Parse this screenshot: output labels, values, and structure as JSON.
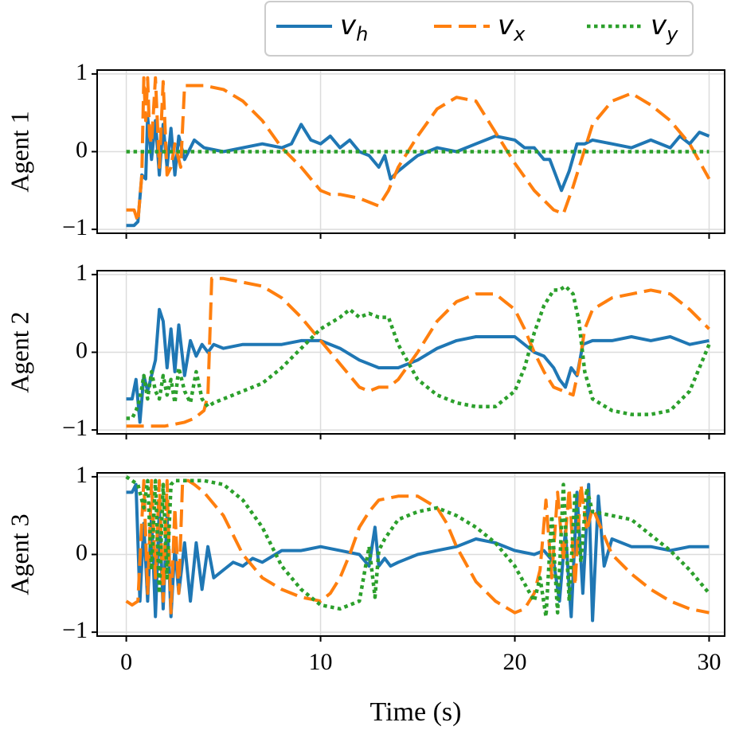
{
  "chart_data": {
    "type": "line",
    "xlabel": "Time (s)",
    "xlim": [
      -1.5,
      30.8
    ],
    "xticks": [
      0,
      10,
      20,
      30
    ],
    "ylim": [
      -1.05,
      1.05
    ],
    "yticks": [
      -1,
      0,
      1
    ],
    "ytick_labels": [
      "−1",
      "0",
      "1"
    ],
    "grid": true,
    "legend": {
      "placement": "top-right",
      "entries": [
        {
          "label": "v",
          "sub": "h",
          "color": "#1f77b4",
          "style": "solid"
        },
        {
          "label": "v",
          "sub": "x",
          "color": "#ff7f0e",
          "style": "dashed"
        },
        {
          "label": "v",
          "sub": "y",
          "color": "#2ca02c",
          "style": "dotted"
        }
      ]
    },
    "panels": [
      {
        "ylabel": "Agent 1",
        "series": [
          {
            "key": "v_h",
            "color": "#1f77b4",
            "style": "solid",
            "x": [
              0,
              0.4,
              0.6,
              0.8,
              1.0,
              1.1,
              1.3,
              1.5,
              1.7,
              1.9,
              2.1,
              2.3,
              2.5,
              2.7,
              3.0,
              3.5,
              4,
              5,
              6,
              7,
              8,
              8.5,
              9,
              9.5,
              10,
              10.5,
              11,
              11.5,
              12,
              12.5,
              13,
              13.3,
              13.6,
              14,
              14.5,
              15,
              16,
              17,
              18,
              19,
              20,
              20.5,
              21,
              21.5,
              21.8,
              22.1,
              22.4,
              22.8,
              23.2,
              23.6,
              24,
              25,
              26,
              27,
              28,
              28.5,
              29,
              29.5,
              30
            ],
            "y": [
              -0.95,
              -0.95,
              -0.9,
              -0.3,
              -0.35,
              0.45,
              -0.1,
              0.4,
              -0.3,
              0.35,
              -0.2,
              0.3,
              -0.3,
              0.2,
              -0.1,
              0.15,
              0.05,
              0.0,
              0.05,
              0.1,
              0.05,
              0.1,
              0.35,
              0.15,
              0.1,
              0.2,
              0.05,
              0.15,
              0.0,
              -0.05,
              -0.2,
              -0.05,
              -0.35,
              -0.25,
              -0.15,
              -0.05,
              0.05,
              0.0,
              0.1,
              0.2,
              0.15,
              0.05,
              0.05,
              -0.1,
              -0.1,
              -0.3,
              -0.5,
              -0.25,
              0.1,
              0.1,
              0.15,
              0.1,
              0.05,
              0.15,
              0.05,
              0.2,
              0.1,
              0.25,
              0.2
            ]
          },
          {
            "key": "v_x",
            "color": "#ff7f0e",
            "style": "dashed",
            "x": [
              0,
              0.4,
              0.6,
              0.8,
              0.9,
              1.0,
              1.1,
              1.2,
              1.3,
              1.5,
              1.7,
              1.9,
              2.1,
              2.3,
              2.5,
              2.8,
              3.0,
              3.5,
              4,
              5,
              6,
              7,
              8,
              9,
              9.5,
              10,
              10.5,
              11,
              12,
              13,
              13.5,
              14,
              15,
              16,
              17,
              18,
              19,
              20,
              21,
              22,
              22.5,
              23,
              24,
              25,
              26,
              27,
              28,
              29,
              30
            ],
            "y": [
              -0.75,
              -0.75,
              -0.9,
              -0.3,
              0.95,
              0.4,
              0.95,
              0.2,
              0.1,
              0.95,
              -0.2,
              0.9,
              -0.3,
              -0.2,
              0.1,
              -0.2,
              0.85,
              0.85,
              0.85,
              0.8,
              0.65,
              0.4,
              0.05,
              -0.2,
              -0.35,
              -0.5,
              -0.55,
              -0.55,
              -0.6,
              -0.7,
              -0.5,
              -0.2,
              0.2,
              0.55,
              0.7,
              0.65,
              0.25,
              -0.15,
              -0.5,
              -0.75,
              -0.8,
              -0.45,
              0.35,
              0.65,
              0.75,
              0.6,
              0.4,
              0.1,
              -0.35
            ]
          },
          {
            "key": "v_y",
            "color": "#2ca02c",
            "style": "dotted",
            "x": [
              0,
              30
            ],
            "y": [
              0,
              0
            ]
          }
        ]
      },
      {
        "ylabel": "Agent 2",
        "series": [
          {
            "key": "v_h",
            "color": "#1f77b4",
            "style": "solid",
            "x": [
              0,
              0.3,
              0.5,
              0.7,
              0.9,
              1.1,
              1.3,
              1.5,
              1.7,
              1.9,
              2.1,
              2.3,
              2.5,
              2.7,
              3.0,
              3.3,
              3.6,
              3.9,
              4.2,
              4.5,
              5,
              6,
              7,
              8,
              9,
              10,
              11,
              12,
              13,
              14,
              15,
              16,
              17,
              18,
              19,
              20,
              21,
              21.5,
              22,
              22.3,
              22.6,
              22.9,
              23.2,
              23.5,
              24,
              25,
              26,
              27,
              28,
              29,
              30
            ],
            "y": [
              -0.6,
              -0.6,
              -0.35,
              -0.9,
              -0.3,
              -0.5,
              -0.3,
              -0.1,
              0.55,
              0.4,
              -0.2,
              0.3,
              -0.25,
              0.35,
              -0.3,
              0.15,
              -0.05,
              0.1,
              0.0,
              0.1,
              0.05,
              0.1,
              0.1,
              0.1,
              0.15,
              0.15,
              0.05,
              -0.1,
              -0.2,
              -0.2,
              -0.1,
              0.05,
              0.15,
              0.2,
              0.2,
              0.2,
              0.0,
              -0.05,
              -0.2,
              -0.35,
              -0.45,
              -0.2,
              -0.3,
              0.1,
              0.15,
              0.15,
              0.2,
              0.15,
              0.2,
              0.1,
              0.15
            ]
          },
          {
            "key": "v_x",
            "color": "#ff7f0e",
            "style": "dashed",
            "x": [
              0,
              1,
              2,
              3,
              3.5,
              4,
              4.2,
              4.4,
              5,
              6,
              7,
              8,
              9,
              10,
              10.5,
              11,
              11.5,
              12,
              12.5,
              13,
              13.5,
              14,
              15,
              16,
              17,
              18,
              19,
              20,
              20.5,
              21,
              21.5,
              22,
              22.5,
              23,
              23.3,
              23.6,
              24,
              25,
              26,
              27,
              28,
              29,
              30
            ],
            "y": [
              -0.95,
              -0.95,
              -0.95,
              -0.9,
              -0.85,
              -0.75,
              -0.55,
              0.95,
              0.95,
              0.9,
              0.85,
              0.7,
              0.45,
              0.15,
              0.0,
              -0.15,
              -0.3,
              -0.45,
              -0.5,
              -0.45,
              -0.45,
              -0.35,
              0.0,
              0.4,
              0.65,
              0.75,
              0.75,
              0.55,
              0.3,
              0.0,
              -0.25,
              -0.45,
              -0.5,
              -0.55,
              -0.2,
              0.3,
              0.55,
              0.7,
              0.75,
              0.8,
              0.75,
              0.55,
              0.3
            ]
          },
          {
            "key": "v_y",
            "color": "#2ca02c",
            "style": "dotted",
            "x": [
              0,
              0.3,
              0.5,
              0.7,
              0.9,
              1.1,
              1.3,
              1.5,
              1.7,
              1.9,
              2.1,
              2.3,
              2.5,
              2.7,
              3.0,
              3.3,
              3.6,
              3.9,
              4.2,
              4.5,
              5,
              6,
              7,
              8,
              9,
              10,
              11,
              11.5,
              12,
              12.5,
              13,
              13.5,
              14,
              15,
              16,
              17,
              18,
              19,
              20,
              20.5,
              21,
              21.5,
              22,
              22.3,
              22.6,
              23,
              23.3,
              23.6,
              24,
              25,
              26,
              27,
              28,
              29,
              30
            ],
            "y": [
              -0.85,
              -0.85,
              -0.75,
              -0.6,
              -0.3,
              -0.6,
              -0.25,
              -0.5,
              -0.6,
              -0.3,
              -0.55,
              -0.35,
              -0.65,
              -0.2,
              -0.5,
              -0.65,
              -0.25,
              -0.6,
              -0.7,
              -0.65,
              -0.6,
              -0.5,
              -0.4,
              -0.2,
              0.05,
              0.3,
              0.45,
              0.55,
              0.45,
              0.5,
              0.45,
              0.45,
              0.1,
              -0.35,
              -0.55,
              -0.65,
              -0.7,
              -0.7,
              -0.5,
              -0.2,
              0.25,
              0.6,
              0.8,
              0.8,
              0.85,
              0.75,
              0.4,
              -0.25,
              -0.6,
              -0.75,
              -0.8,
              -0.8,
              -0.75,
              -0.5,
              0.1
            ]
          }
        ]
      },
      {
        "ylabel": "Agent 3",
        "series": [
          {
            "key": "v_h",
            "color": "#1f77b4",
            "style": "solid",
            "x": [
              0,
              0.3,
              0.5,
              0.7,
              0.9,
              1.1,
              1.3,
              1.5,
              1.7,
              1.9,
              2.1,
              2.3,
              2.5,
              2.7,
              3.0,
              3.3,
              3.6,
              3.9,
              4.2,
              4.5,
              5,
              5.5,
              6,
              6.5,
              7,
              8,
              9,
              10,
              11,
              12,
              12.5,
              12.8,
              13,
              13.3,
              13.6,
              14,
              15,
              16,
              17,
              18,
              19,
              20,
              21,
              21.5,
              22,
              22.3,
              22.6,
              22.9,
              23.2,
              23.5,
              23.8,
              24,
              24.3,
              24.6,
              25,
              26,
              27,
              28,
              29,
              30
            ],
            "y": [
              0.8,
              0.8,
              0.9,
              -0.6,
              0.4,
              -0.6,
              0.5,
              -0.8,
              0.6,
              -0.7,
              0.5,
              -0.8,
              0.1,
              -0.5,
              0.15,
              -0.6,
              0.15,
              -0.45,
              0.1,
              -0.3,
              -0.2,
              -0.1,
              -0.15,
              -0.05,
              -0.1,
              0.05,
              0.05,
              0.1,
              0.05,
              0.0,
              -0.15,
              0.35,
              -0.15,
              -0.05,
              -0.15,
              -0.1,
              0.0,
              0.05,
              0.1,
              0.2,
              0.15,
              0.05,
              0.0,
              0.05,
              -0.1,
              -0.6,
              0.3,
              -0.8,
              0.8,
              -0.5,
              0.9,
              -0.85,
              0.75,
              -0.15,
              0.2,
              0.1,
              0.1,
              0.05,
              0.1,
              0.1
            ]
          },
          {
            "key": "v_x",
            "color": "#ff7f0e",
            "style": "dashed",
            "x": [
              0,
              0.3,
              0.6,
              0.9,
              1.1,
              1.3,
              1.5,
              1.7,
              1.9,
              2.1,
              2.3,
              2.5,
              2.7,
              2.9,
              3.2,
              3.5,
              4,
              5,
              6,
              7,
              8,
              9,
              10,
              10.5,
              11,
              11.5,
              12,
              12.5,
              13,
              14,
              15,
              16,
              16.5,
              17,
              18,
              19,
              20,
              20.5,
              21,
              21.3,
              21.6,
              21.9,
              22.2,
              22.5,
              22.8,
              23.1,
              23.4,
              23.7,
              24,
              24.5,
              25,
              26,
              27,
              28,
              29,
              30
            ],
            "y": [
              -0.6,
              -0.65,
              -0.6,
              0.95,
              -0.5,
              0.95,
              -0.3,
              0.95,
              -0.6,
              0.95,
              -0.75,
              0.6,
              -0.5,
              0.95,
              0.95,
              0.9,
              0.8,
              0.5,
              0.0,
              -0.3,
              -0.45,
              -0.55,
              -0.6,
              -0.5,
              -0.3,
              0.0,
              0.35,
              0.55,
              0.7,
              0.75,
              0.75,
              0.6,
              0.4,
              0.1,
              -0.35,
              -0.6,
              -0.75,
              -0.7,
              -0.5,
              -0.2,
              0.7,
              -0.3,
              0.8,
              -0.1,
              0.85,
              -0.4,
              0.9,
              0.3,
              0.6,
              0.3,
              0.0,
              -0.25,
              -0.45,
              -0.6,
              -0.7,
              -0.75
            ]
          },
          {
            "key": "v_y",
            "color": "#2ca02c",
            "style": "dotted",
            "x": [
              0,
              0.3,
              0.6,
              0.9,
              1.1,
              1.3,
              1.5,
              1.7,
              1.9,
              2.1,
              2.3,
              2.5,
              2.7,
              3.0,
              3.5,
              4,
              5,
              6,
              7,
              8,
              9,
              10,
              11,
              12,
              12.5,
              12.8,
              13,
              13.3,
              14,
              15,
              16,
              17,
              18,
              19,
              20,
              21,
              21.3,
              21.6,
              21.9,
              22.2,
              22.5,
              22.8,
              23.1,
              23.4,
              23.7,
              24,
              25,
              26,
              27,
              28,
              29,
              30
            ],
            "y": [
              1.0,
              0.95,
              0.9,
              0.6,
              0.95,
              -0.2,
              0.95,
              -0.5,
              0.9,
              -0.3,
              0.9,
              0.95,
              0.95,
              0.95,
              0.95,
              0.95,
              0.9,
              0.7,
              0.35,
              -0.15,
              -0.45,
              -0.65,
              -0.7,
              -0.6,
              0.1,
              -0.55,
              0.05,
              0.2,
              0.45,
              0.55,
              0.6,
              0.5,
              0.35,
              0.15,
              -0.15,
              -0.6,
              -0.3,
              -0.8,
              0.5,
              -0.75,
              0.9,
              -0.6,
              0.8,
              -0.1,
              0.85,
              0.55,
              0.5,
              0.45,
              0.25,
              0.05,
              -0.2,
              -0.5
            ]
          }
        ]
      }
    ]
  }
}
